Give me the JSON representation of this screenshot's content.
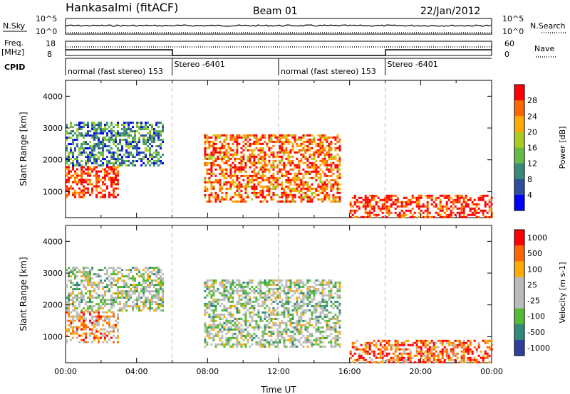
{
  "header": {
    "station": "Hankasalmi (fitACF)",
    "beam": "Beam 01",
    "date": "22/Jan/2012"
  },
  "top_panels": {
    "nsky_label": "N.Sky",
    "nsky_ticks": [
      "10^5",
      "10^0"
    ],
    "nsearch_label": "N.Search",
    "nsearch_ticks": [
      "10^5",
      "10^0"
    ],
    "freq_label_1": "Freq.",
    "freq_label_2": "[MHz]",
    "freq_ticks": [
      "18",
      "8"
    ],
    "nave_label": "Nave",
    "nave_ticks": [
      "60",
      "0"
    ],
    "cpid_label": "CPID",
    "cpid_segments": [
      {
        "label": "normal (fast stereo) 153",
        "start": 0,
        "end": 6
      },
      {
        "label": "Stereo -6401",
        "start": 6,
        "end": 12
      },
      {
        "label": "normal (fast stereo) 153",
        "start": 12,
        "end": 18
      },
      {
        "label": "Stereo -6401",
        "start": 18,
        "end": 24
      }
    ]
  },
  "chart_data": [
    {
      "type": "heatmap",
      "title": "Power",
      "ylabel": "Slant Range [km]",
      "ylim": [
        180,
        4500
      ],
      "yticks": [
        "1000",
        "2000",
        "3000",
        "4000"
      ],
      "xlim": [
        0,
        24
      ],
      "xlabel": "",
      "colorbar_label": "Power [dB]",
      "colorbar_ticks": [
        "4",
        "8",
        "12",
        "16",
        "20",
        "24",
        "28"
      ],
      "colorbar_colors": [
        "#0000ff",
        "#2c4fa0",
        "#3a8a7a",
        "#66bb44",
        "#aacc22",
        "#ffaa00",
        "#ff6600",
        "#ff0000"
      ],
      "echo_regions": [
        {
          "t0": 0.0,
          "t1": 3.0,
          "r0": 800,
          "r1": 1800,
          "level": 7
        },
        {
          "t0": 0.0,
          "t1": 5.5,
          "r0": 1800,
          "r1": 3200,
          "level": 2
        },
        {
          "t0": 7.8,
          "t1": 15.5,
          "r0": 700,
          "r1": 2800,
          "level": 6
        },
        {
          "t0": 16.0,
          "t1": 24.0,
          "r0": 200,
          "r1": 900,
          "level": 7
        }
      ]
    },
    {
      "type": "heatmap",
      "title": "Velocity",
      "ylabel": "Slant Range [km]",
      "ylim": [
        180,
        4500
      ],
      "yticks": [
        "1000",
        "2000",
        "3000",
        "4000"
      ],
      "xlim": [
        0,
        24
      ],
      "xlabel": "Time UT",
      "xticks": [
        "00:00",
        "04:00",
        "08:00",
        "12:00",
        "16:00",
        "20:00",
        "00:00"
      ],
      "colorbar_label": "Velocity [m s-1]",
      "colorbar_ticks": [
        "1000",
        "500",
        "100",
        "25",
        "-25",
        "-100",
        "-500",
        "-1000"
      ],
      "colorbar_colors": [
        "#2f3fa0",
        "#2f8a7a",
        "#55bb33",
        "#bbbbbb",
        "#bbbbbb",
        "#ffaa00",
        "#ff6600",
        "#ff0000"
      ],
      "echo_regions": [
        {
          "t0": 0.0,
          "t1": 3.0,
          "r0": 800,
          "r1": 1800,
          "level": 5
        },
        {
          "t0": 0.0,
          "t1": 5.5,
          "r0": 1800,
          "r1": 3200,
          "level": 3
        },
        {
          "t0": 7.8,
          "t1": 15.5,
          "r0": 700,
          "r1": 2800,
          "level": 3
        },
        {
          "t0": 16.0,
          "t1": 24.0,
          "r0": 200,
          "r1": 900,
          "level": 6
        }
      ]
    }
  ]
}
